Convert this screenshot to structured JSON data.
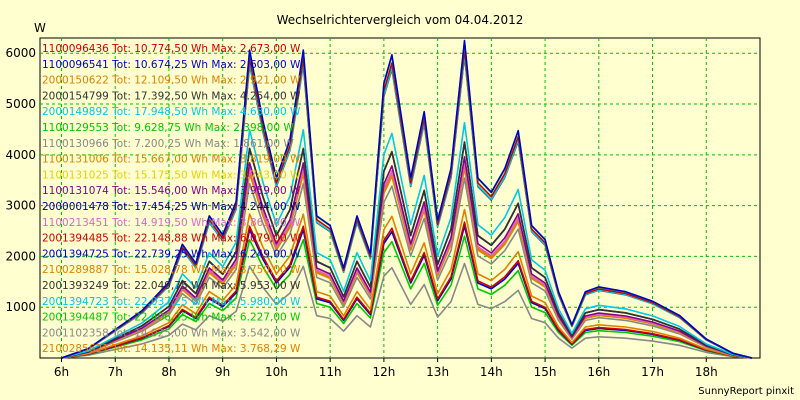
{
  "chart_data": {
    "type": "line",
    "title": "Wechselrichtervergleich vom 04.04.2012",
    "ylabel": "W",
    "footer": "SunnyReport pinxit",
    "ylim": [
      0,
      6300
    ],
    "yticks": [
      1000,
      2000,
      3000,
      4000,
      5000,
      6000
    ],
    "xlim": [
      5.6,
      19.0
    ],
    "xticks": [
      {
        "x": 6,
        "label": "6h"
      },
      {
        "x": 7,
        "label": "7h"
      },
      {
        "x": 8,
        "label": "8h"
      },
      {
        "x": 9,
        "label": "9h"
      },
      {
        "x": 10,
        "label": "10h"
      },
      {
        "x": 11,
        "label": "11h"
      },
      {
        "x": 12,
        "label": "12h"
      },
      {
        "x": 13,
        "label": "13h"
      },
      {
        "x": 14,
        "label": "14h"
      },
      {
        "x": 15,
        "label": "15h"
      },
      {
        "x": 16,
        "label": "16h"
      },
      {
        "x": 17,
        "label": "17h"
      },
      {
        "x": 18,
        "label": "18h"
      }
    ],
    "grid": true,
    "legend_position": "top-left",
    "x": [
      6.0,
      6.5,
      7.0,
      7.25,
      7.5,
      7.75,
      8.0,
      8.25,
      8.5,
      8.75,
      9.0,
      9.25,
      9.5,
      9.75,
      10.0,
      10.25,
      10.5,
      10.75,
      11.0,
      11.25,
      11.5,
      11.75,
      12.0,
      12.15,
      12.5,
      12.75,
      13.0,
      13.25,
      13.5,
      13.75,
      14.0,
      14.25,
      14.5,
      14.75,
      15.0,
      15.25,
      15.5,
      15.75,
      16.0,
      16.5,
      17.0,
      17.5,
      18.0,
      18.5,
      18.85
    ],
    "profile": [
      0,
      0.02,
      0.06,
      0.08,
      0.1,
      0.13,
      0.16,
      0.24,
      0.2,
      0.3,
      0.26,
      0.33,
      0.65,
      0.5,
      0.38,
      0.46,
      0.65,
      0.3,
      0.28,
      0.19,
      0.3,
      0.22,
      0.58,
      0.64,
      0.38,
      0.52,
      0.29,
      0.4,
      0.67,
      0.38,
      0.35,
      0.4,
      0.48,
      0.28,
      0.25,
      0.14,
      0.07,
      0.14,
      0.15,
      0.14,
      0.12,
      0.09,
      0.04,
      0.01,
      0
    ],
    "series": [
      {
        "legend": "1100096436 Tot: 10.774,50 Wh Max: 2.673,00 W",
        "color": "#cc0000",
        "max": 2673
      },
      {
        "legend": "1100096541 Tot: 10.674,25 Wh Max: 2.603,00 W",
        "color": "#0000cc",
        "max": 2603
      },
      {
        "legend": "2000150622 Tot: 12.109,50 Wh Max: 2.921,00 W",
        "color": "#e08000",
        "max": 2921
      },
      {
        "legend": "2000154799 Tot: 17.392,50 Wh Max: 4.254,00 W",
        "color": "#333333",
        "max": 4254
      },
      {
        "legend": "2000149892 Tot: 17.948,50 Wh Max: 4.630,00 W",
        "color": "#00c8e8",
        "max": 4630
      },
      {
        "legend": "1100129553 Tot: 9.628,75 Wh Max: 2.398,00 W",
        "color": "#00c800",
        "max": 2398
      },
      {
        "legend": "1100130966 Tot: 7.200,25 Wh Max: 1.861,00 W",
        "color": "#888888",
        "max": 1861
      },
      {
        "legend": "1100131006 Tot: 15.667,00 Wh Max: 3.819,00 W",
        "color": "#e08000",
        "max": 3819
      },
      {
        "legend": "1100131025 Tot: 15.175,50 Wh Max: 3.743,00 W",
        "color": "#e8d000",
        "max": 3743
      },
      {
        "legend": "1100131074 Tot: 15.546,00 Wh Max: 3.959,00 W",
        "color": "#880088",
        "max": 3959
      },
      {
        "legend": "2000001478 Tot: 17.454,25 Wh Max: 4.244,00 W",
        "color": "#000088",
        "max": 4244
      },
      {
        "legend": "1100213451 Tot: 14.919,50 Wh Max: 3.863,00 W",
        "color": "#dd66cc",
        "max": 3863
      },
      {
        "legend": "2001394485 Tot: 22.148,88 Wh Max: 6.079,00 W",
        "color": "#cc0000",
        "max": 6079
      },
      {
        "legend": "2001394725 Tot: 22.739,25 Wh Max: 6.249,00 W",
        "color": "#0000cc",
        "max": 6249
      },
      {
        "legend": "2100289887 Tot: 15.028,78 Wh Max: 3.750,00 W",
        "color": "#e08000",
        "max": 3750
      },
      {
        "legend": "2001393249 Tot: 22.049,75 Wh Max: 5.953,00 W",
        "color": "#333333",
        "max": 5953
      },
      {
        "legend": "2001394723 Tot: 22.037,25 Wh Max: 5.980,00 W",
        "color": "#00c8e8",
        "max": 5980
      },
      {
        "legend": "2001394487 Tot: 22.406,25 Wh Max: 6.227,00 W",
        "color": "#00c800",
        "max": 6227
      },
      {
        "legend": "2001102358 Tot: 14.025,00 Wh Max: 3.542,00 W",
        "color": "#888888",
        "max": 3542
      },
      {
        "legend": "2100285621 Tot: 14.135,11 Wh Max: 3.768,29 W",
        "color": "#e08000",
        "max": 3768.29
      }
    ]
  }
}
